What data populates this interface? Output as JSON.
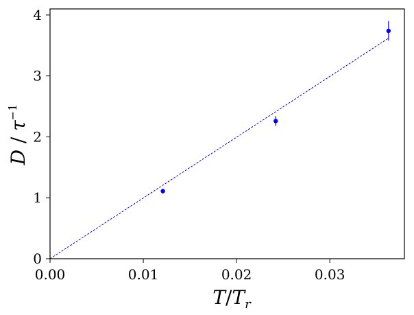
{
  "chart_data": {
    "type": "scatter",
    "xlabel": "T/T_r",
    "ylabel": "D / τ^-1",
    "xlim": [
      0.0,
      0.038
    ],
    "ylim": [
      0,
      4.1
    ],
    "x_ticks": [
      "0.00",
      "0.01",
      "0.02",
      "0.03"
    ],
    "x_tick_values": [
      0.0,
      0.01,
      0.02,
      0.03
    ],
    "y_ticks": [
      "0",
      "1",
      "2",
      "3",
      "4"
    ],
    "y_tick_values": [
      0,
      1,
      2,
      3,
      4
    ],
    "grid": false,
    "series": [
      {
        "kind": "points-with-errorbars",
        "color": "#0000ff",
        "x": [
          0.0121,
          0.0242,
          0.0363
        ],
        "y": [
          1.11,
          2.26,
          3.74
        ],
        "yerr": [
          0.04,
          0.08,
          0.16
        ]
      },
      {
        "kind": "fit-line",
        "style": "dashed",
        "color": "#0000ff",
        "x": [
          0.0,
          0.0363
        ],
        "y": [
          0.0,
          3.62
        ]
      }
    ]
  }
}
